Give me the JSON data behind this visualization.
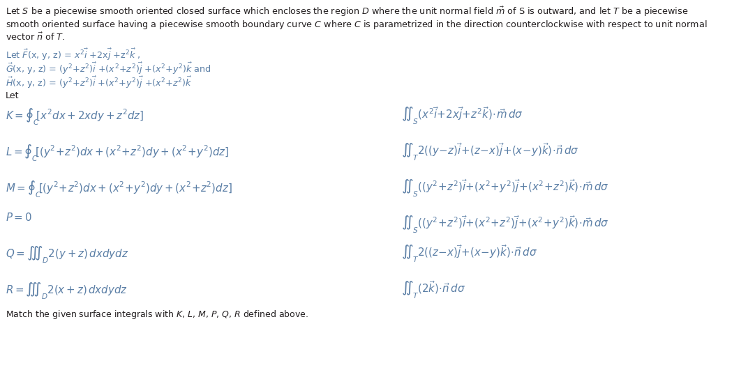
{
  "bg_color": "#ffffff",
  "text_color": "#231F20",
  "math_color": "#5B7FA6",
  "figsize": [
    10.82,
    5.54
  ],
  "dpi": 100,
  "fs_body": 9.2,
  "fs_math": 10.8,
  "fs_footer": 9.0,
  "intro1": "Let $S$ be a piecewise smooth oriented closed surface which encloses the region $D$ where the unit normal field $\\vec{m}$ of S is outward, and let $T$ be a piecewise",
  "intro2": "smooth oriented surface having a piecewise smooth boundary curve $C$ where $C$ is parametrized in the direction counterclockwise with respect to unit normal",
  "intro3": "vector $\\vec{n}$ of $T$.",
  "def1": "Let $\\vec{F}$(x, y, z) = $x^2\\vec{i}$ +2x$\\vec{j}$ +z$^2\\vec{k}$ ,",
  "def2": "$\\vec{G}$(x, y, z) = $(y^2$+$z^2)\\vec{i}$ +$(x^2$+$z^2)\\vec{j}$ +$(x^2$+$y^2)\\vec{k}$ and",
  "def3": "$\\vec{H}$(x, y, z) = $(y^2$+$z^2)\\vec{i}$ +$(x^2$+$y^2)\\vec{j}$ +$(x^2$+$z^2)\\vec{k}$",
  "let": "Let",
  "K": "$K = \\oint_C \\![x^2dx+2xdy+z^2dz]$",
  "L": "$L = \\oint_C \\![(y^2\\!+\\!z^2)dx+(x^2\\!+\\!z^2)dy+(x^2\\!+\\!y^2)dz]$",
  "M": "$M = \\oint_C \\![(y^2\\!+\\!z^2)dx+(x^2\\!+\\!y^2)dy+(x^2\\!+\\!z^2)dz]$",
  "P": "$P = 0$",
  "Q": "$Q = \\iiint_D 2(y+z)\\,dxdydz$",
  "R": "$R = \\iiint_D 2(x+z)\\,dxdydz$",
  "I1": "$\\iint_S (x^2\\vec{i}\\!+\\!2x\\vec{j}\\!+\\!z^2\\vec{k})\\!\\cdot\\!\\vec{m}\\,d\\sigma$",
  "I2": "$\\iint_T 2((y\\!-\\!z)\\vec{i}\\!+\\!(z\\!-\\!x)\\vec{j}\\!+\\!(x\\!-\\!y)\\vec{k})\\!\\cdot\\!\\vec{n}\\,d\\sigma$",
  "I3": "$\\iint_S ((y^2\\!+\\!z^2)\\vec{i}\\!+\\!(x^2\\!+\\!y^2)\\vec{j}\\!+\\!(x^2\\!+\\!z^2)\\vec{k})\\!\\cdot\\!\\vec{m}\\,d\\sigma$",
  "I4": "$\\iint_S ((y^2\\!+\\!z^2)\\vec{i}\\!+\\!(x^2\\!+\\!z^2)\\vec{j}\\!+\\!(x^2\\!+\\!y^2)\\vec{k})\\!\\cdot\\!\\vec{m}\\,d\\sigma$",
  "I5": "$\\iint_T 2((z\\!-\\!x)\\vec{j}\\!+\\!(x\\!-\\!y)\\vec{k})\\!\\cdot\\!\\vec{n}\\,d\\sigma$",
  "I6": "$\\iint_T (2\\vec{k})\\!\\cdot\\!\\vec{n}\\,d\\sigma$",
  "footer": "Match the given surface integrals with $K$, $L$, $M$, $P$, $Q$, $R$ defined above."
}
